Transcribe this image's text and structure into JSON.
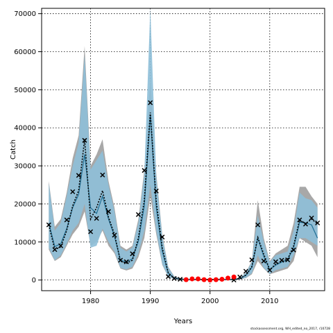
{
  "chart_data": {
    "type": "line",
    "xlabel": "Years",
    "ylabel": "Catch",
    "xlim": [
      1971.8,
      2019.2
    ],
    "ylim": [
      -2800,
      71400
    ],
    "x_ticks": [
      1980,
      1990,
      2000,
      2010
    ],
    "y_ticks": [
      0,
      10000,
      20000,
      30000,
      40000,
      50000,
      60000,
      70000
    ],
    "grid": true,
    "colors": {
      "outer_band": "#a8a8a8",
      "inner_band": "#8ebfd8",
      "median_line": "#1f6e94",
      "estimate_line": "#000000",
      "observed_marker": "#000000",
      "highlight_marker": "#ff0000"
    },
    "years": [
      1973,
      1974,
      1975,
      1976,
      1977,
      1978,
      1979,
      1980,
      1981,
      1982,
      1983,
      1984,
      1985,
      1986,
      1987,
      1988,
      1989,
      1990,
      1991,
      1992,
      1993,
      1994,
      1995,
      1996,
      1997,
      1998,
      1999,
      2000,
      2001,
      2002,
      2003,
      2004,
      2005,
      2006,
      2007,
      2008,
      2009,
      2010,
      2011,
      2012,
      2013,
      2014,
      2015,
      2016,
      2017,
      2018
    ],
    "outer_upper": [
      26000,
      14000,
      16000,
      23000,
      32000,
      38000,
      61500,
      30000,
      33000,
      37000,
      26000,
      19000,
      9000,
      8000,
      9000,
      16000,
      29000,
      53000,
      28000,
      12000,
      3500,
      1000,
      500,
      300,
      300,
      300,
      300,
      300,
      300,
      300,
      300,
      300,
      600,
      2000,
      5000,
      21000,
      11000,
      5000,
      7000,
      8000,
      9000,
      15000,
      24500,
      24500,
      22000,
      20000
    ],
    "outer_lower": [
      8000,
      5000,
      6000,
      9000,
      12000,
      14000,
      18000,
      9000,
      10000,
      13000,
      9000,
      7000,
      3000,
      2500,
      3000,
      6000,
      11000,
      22000,
      12000,
      4000,
      800,
      200,
      100,
      50,
      50,
      50,
      50,
      50,
      50,
      50,
      50,
      50,
      150,
      500,
      1500,
      5000,
      3000,
      1500,
      2000,
      2500,
      3000,
      5000,
      11000,
      10000,
      9000,
      6000
    ],
    "inner_upper": [
      25500,
      13000,
      15000,
      22000,
      30000,
      36000,
      59000,
      29000,
      31500,
      34000,
      25000,
      18000,
      8500,
      7500,
      8500,
      15000,
      28000,
      71400,
      27000,
      11500,
      3300,
      900,
      450,
      280,
      280,
      280,
      280,
      280,
      280,
      280,
      280,
      280,
      580,
      1900,
      4800,
      17000,
      10000,
      4800,
      6500,
      7000,
      7500,
      13000,
      23000,
      21500,
      21000,
      19000
    ],
    "inner_lower": [
      8500,
      5200,
      6500,
      9500,
      13000,
      15000,
      20000,
      8500,
      9000,
      13500,
      10000,
      7500,
      3200,
      2800,
      3500,
      7000,
      13000,
      25000,
      13000,
      4200,
      900,
      220,
      120,
      60,
      60,
      60,
      60,
      60,
      60,
      60,
      60,
      60,
      200,
      600,
      1800,
      6500,
      3200,
      1600,
      2600,
      3000,
      3500,
      6500,
      11000,
      11000,
      10000,
      9000
    ],
    "median": [
      15000,
      8800,
      9500,
      13500,
      19000,
      22500,
      33000,
      19000,
      17500,
      22000,
      16000,
      11500,
      5200,
      4700,
      5600,
      10200,
      19500,
      43500,
      19000,
      7600,
      1800,
      500,
      250,
      150,
      150,
      150,
      150,
      150,
      150,
      150,
      150,
      150,
      350,
      1200,
      3300,
      11000,
      6200,
      2700,
      3900,
      4700,
      5300,
      8500,
      15200,
      15000,
      14500,
      11000
    ],
    "estimate": [
      14500,
      8000,
      8700,
      13000,
      19500,
      23500,
      37000,
      16000,
      19000,
      23500,
      16500,
      12000,
      5000,
      4400,
      5200,
      11000,
      21000,
      44000,
      20500,
      8500,
      1900,
      480,
      240,
      120,
      120,
      120,
      120,
      120,
      120,
      120,
      120,
      120,
      400,
      1300,
      3500,
      11200,
      6800,
      2700,
      4200,
      4900,
      5500,
      9000,
      15800,
      14800,
      16000,
      14800
    ],
    "observed_x": [
      1973,
      1974,
      1975,
      1976,
      1977,
      1978,
      1979,
      1980,
      1981,
      1982,
      1983,
      1984,
      1985,
      1986,
      1987,
      1988,
      1989,
      1990,
      1991,
      1992,
      1993,
      1994,
      1995,
      2004,
      2005,
      2006,
      2007,
      2008,
      2009,
      2010,
      2011,
      2012,
      2013,
      2014,
      2015,
      2016,
      2017,
      2018
    ],
    "observed_y": [
      14500,
      8000,
      9000,
      15800,
      23200,
      27500,
      36700,
      12700,
      16200,
      27600,
      18000,
      11800,
      5200,
      4800,
      6900,
      17200,
      28800,
      46600,
      23400,
      11300,
      900,
      400,
      200,
      0,
      800,
      2300,
      5300,
      14500,
      5000,
      2600,
      4800,
      5200,
      5300,
      7900,
      15800,
      14700,
      16300,
      15000
    ],
    "highlight_x": [
      1996,
      1997,
      1998,
      1999,
      2000,
      2001,
      2002,
      2003,
      2004
    ],
    "highlight_y": [
      100,
      300,
      300,
      100,
      0,
      100,
      200,
      500,
      800
    ]
  },
  "footer": {
    "note": "stockassessment.org, WH_edited_no_2017, r10728"
  }
}
